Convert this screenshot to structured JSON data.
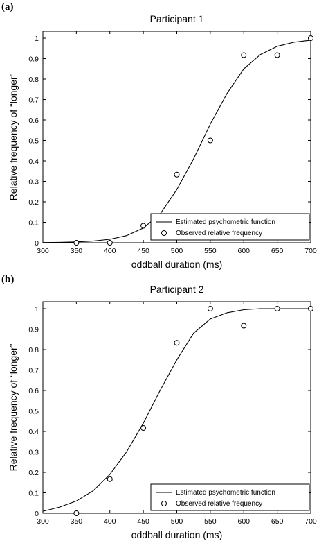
{
  "panels": [
    {
      "label": "(a)"
    },
    {
      "label": "(b)"
    }
  ],
  "chart_data": [
    {
      "type": "scatter",
      "title": "Participant 1",
      "xlabel": "oddball duration (ms)",
      "ylabel": "Relative frequency of “longer”",
      "xlim": [
        300,
        700
      ],
      "ylim": [
        0,
        1
      ],
      "xticks": [
        "300",
        "350",
        "400",
        "450",
        "500",
        "550",
        "600",
        "650",
        "700"
      ],
      "yticks": [
        "0",
        "0.1",
        "0.2",
        "0.3",
        "0.4",
        "0.5",
        "0.6",
        "0.7",
        "0.8",
        "0.9",
        "1"
      ],
      "grid": false,
      "legend_position": "bottom-right",
      "series": [
        {
          "name": "Estimated psychometric function",
          "kind": "line",
          "x": [
            300,
            325,
            350,
            375,
            400,
            425,
            450,
            475,
            500,
            525,
            550,
            575,
            600,
            625,
            650,
            675,
            700
          ],
          "y": [
            0.001,
            0.002,
            0.004,
            0.008,
            0.017,
            0.035,
            0.072,
            0.14,
            0.26,
            0.41,
            0.58,
            0.73,
            0.85,
            0.92,
            0.96,
            0.98,
            0.99
          ]
        },
        {
          "name": "Observed relative frequency",
          "kind": "markers",
          "x": [
            350,
            400,
            450,
            500,
            550,
            600,
            650,
            700
          ],
          "y": [
            0,
            0,
            0.083,
            0.333,
            0.5,
            0.917,
            0.917,
            1
          ]
        }
      ]
    },
    {
      "type": "scatter",
      "title": "Participant 2",
      "xlabel": "oddball duration (ms)",
      "ylabel": "Relative frequency of “longer”",
      "xlim": [
        300,
        700
      ],
      "ylim": [
        0,
        1
      ],
      "xticks": [
        "300",
        "350",
        "400",
        "450",
        "500",
        "550",
        "600",
        "650",
        "700"
      ],
      "yticks": [
        "0",
        "0.1",
        "0.2",
        "0.3",
        "0.4",
        "0.5",
        "0.6",
        "0.7",
        "0.8",
        "0.9",
        "1"
      ],
      "grid": false,
      "legend_position": "bottom-right",
      "series": [
        {
          "name": "Estimated psychometric function",
          "kind": "line",
          "x": [
            300,
            325,
            350,
            375,
            400,
            425,
            450,
            475,
            500,
            525,
            550,
            575,
            600,
            625,
            650,
            675,
            700
          ],
          "y": [
            0.01,
            0.03,
            0.06,
            0.11,
            0.19,
            0.3,
            0.44,
            0.6,
            0.75,
            0.88,
            0.95,
            0.98,
            0.995,
            1,
            1,
            1,
            1
          ]
        },
        {
          "name": "Observed relative frequency",
          "kind": "markers",
          "x": [
            350,
            400,
            450,
            500,
            550,
            600,
            650,
            700
          ],
          "y": [
            0,
            0.167,
            0.417,
            0.833,
            1,
            0.917,
            1,
            1
          ]
        }
      ]
    }
  ]
}
